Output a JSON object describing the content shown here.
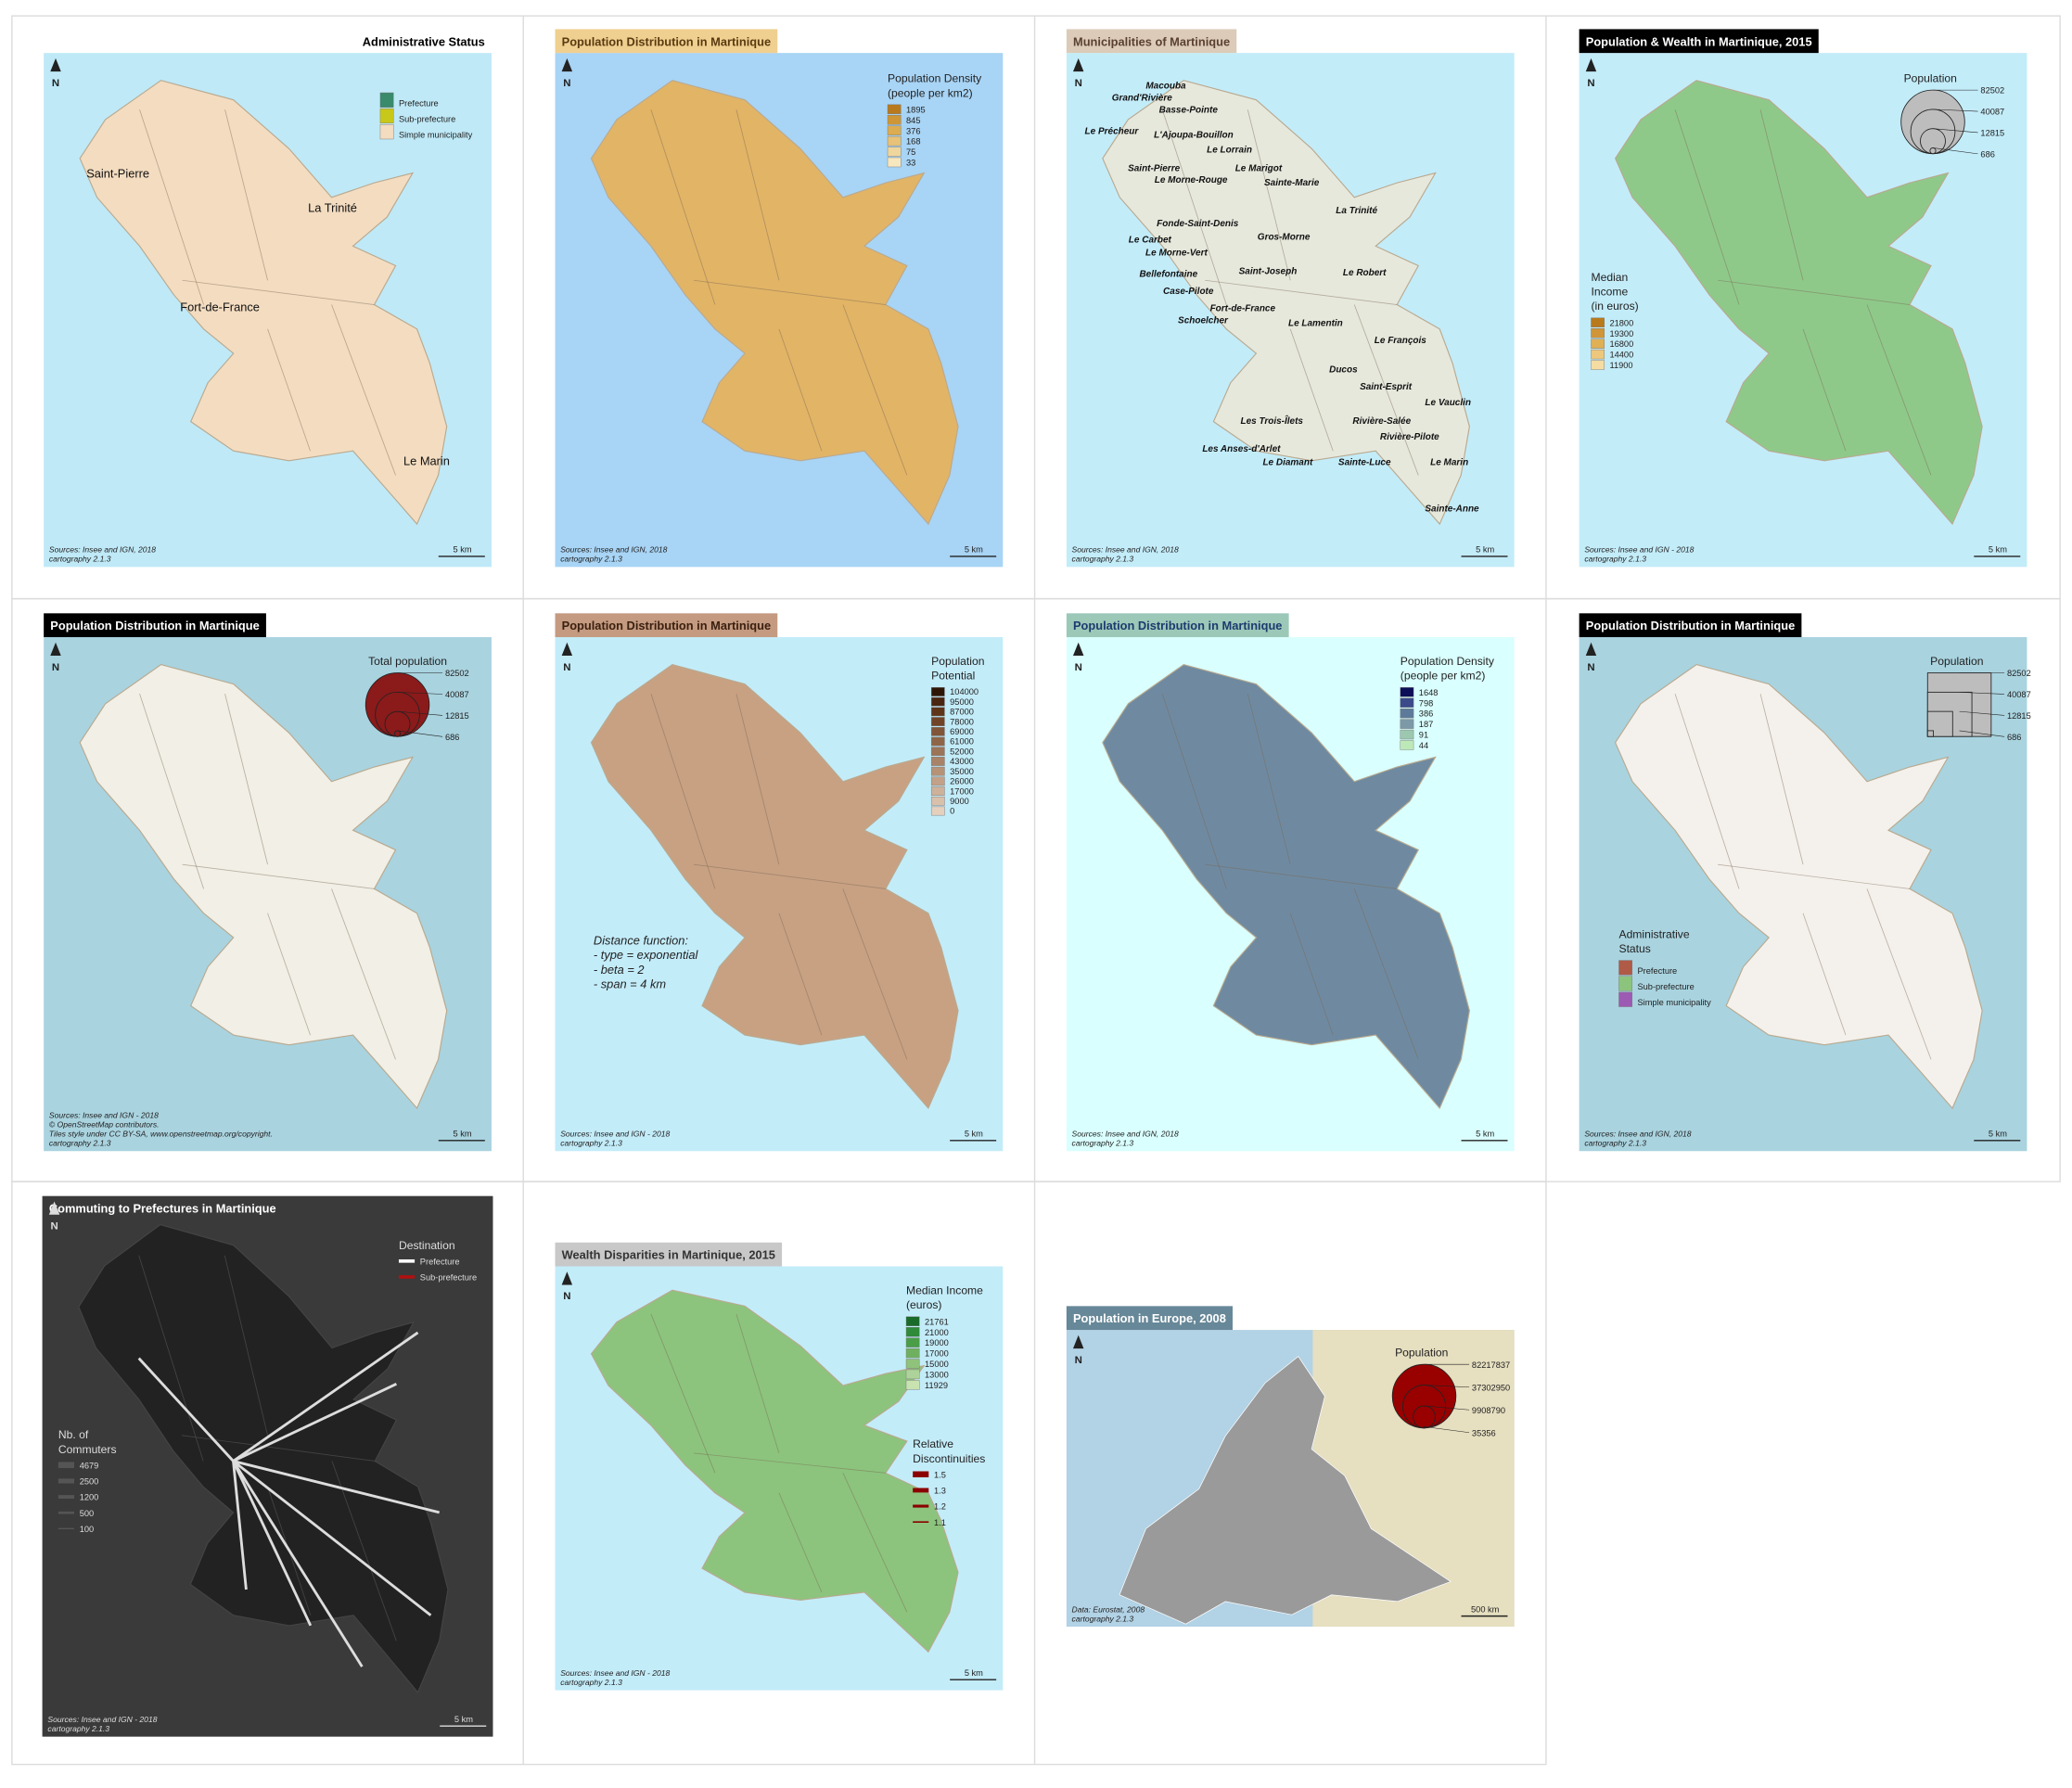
{
  "panels": [
    {
      "title": "Administrative Status",
      "north": "N",
      "scale": "5 km",
      "sources": [
        "Sources: Insee and IGN, 2018",
        "cartography 2.1.3"
      ],
      "labels": [
        "Saint-Pierre",
        "La Trinité",
        "Fort-de-France",
        "Le Marin"
      ],
      "legends": [
        {
          "kind": "swatch",
          "items": [
            "Prefecture",
            "Sub-prefecture",
            "Simple municipality"
          ],
          "colors": [
            "#3a8a6c",
            "#c8c81a",
            "#f3dcc0"
          ]
        }
      ]
    },
    {
      "title": "Population Distribution in Martinique",
      "north": "N",
      "scale": "5 km",
      "sources": [
        "Sources: Insee and IGN, 2018",
        "cartography 2.1.3"
      ],
      "legends": [
        {
          "kind": "swatch",
          "title": [
            "Population Density",
            "(people per km2)"
          ],
          "items": [
            1895,
            845,
            376,
            168,
            75,
            33
          ],
          "colors": [
            "#b87a1c",
            "#cf9635",
            "#dcac50",
            "#e7c278",
            "#efd69c",
            "#f7e7be"
          ]
        }
      ]
    },
    {
      "title": "Municipalities of Martinique",
      "north": "N",
      "scale": "5 km",
      "sources": [
        "Sources: Insee and IGN, 2018",
        "cartography 2.1.3"
      ],
      "labels": [
        "Macouba",
        "Grand'Rivière",
        "Basse-Pointe",
        "Le Précheur",
        "L'Ajoupa-Bouillon",
        "Le Lorrain",
        "Saint-Pierre",
        "Le Marigot",
        "Le Morne-Rouge",
        "Sainte-Marie",
        "La Trinité",
        "Fonde-Saint-Denis",
        "Le Carbet",
        "Gros-Morne",
        "Le Morne-Vert",
        "Bellefontaine",
        "Saint-Joseph",
        "Le Robert",
        "Case-Pilote",
        "Fort-de-France",
        "Schoelcher",
        "Le Lamentin",
        "Le François",
        "Ducos",
        "Saint-Esprit",
        "Le Vauclin",
        "Les Trois-Îlets",
        "Rivière-Salée",
        "Rivière-Pilote",
        "Les Anses-d'Arlet",
        "Le Diamant",
        "Sainte-Luce",
        "Le Marin",
        "Sainte-Anne"
      ],
      "legends": []
    },
    {
      "title": "Population & Wealth in Martinique, 2015",
      "north": "N",
      "scale": "5 km",
      "sources": [
        "Sources: Insee and IGN - 2018",
        "cartography 2.1.3"
      ],
      "legends": [
        {
          "kind": "circles",
          "title": [
            "Population"
          ],
          "items": [
            82502,
            40087,
            12815,
            686
          ],
          "colors": [
            "#bdbdbd"
          ]
        },
        {
          "kind": "swatch",
          "title": [
            "Median",
            "Income",
            "(in euros)"
          ],
          "items": [
            21800,
            19300,
            16800,
            14400,
            11900
          ],
          "colors": [
            "#b87a1c",
            "#d09538",
            "#e0b055",
            "#edc77c",
            "#f5dca2"
          ]
        }
      ]
    },
    {
      "title": "Population Distribution in Martinique",
      "north": "N",
      "scale": "5 km",
      "sources": [
        "Sources: Insee and IGN - 2018",
        "© OpenStreetMap contributors.",
        "Tiles style under CC BY-SA, www.openstreetmap.org/copyright.",
        "cartography 2.1.3"
      ],
      "legends": [
        {
          "kind": "circles",
          "title": [
            "Total population"
          ],
          "items": [
            82502,
            40087,
            12815,
            686
          ],
          "colors": [
            "#8b1a1a"
          ]
        }
      ]
    },
    {
      "title": "Population Distribution in Martinique",
      "north": "N",
      "scale": "5 km",
      "sources": [
        "Sources: Insee and IGN - 2018",
        "cartography 2.1.3"
      ],
      "annotation": [
        "Distance function:",
        "- type = exponential",
        "- beta = 2",
        "- span = 4 km"
      ],
      "legends": [
        {
          "kind": "swatch",
          "title": [
            "Population",
            "Potential"
          ],
          "items": [
            104000,
            95000,
            87000,
            78000,
            69000,
            61000,
            52000,
            43000,
            35000,
            26000,
            17000,
            9000,
            0
          ],
          "colors": [
            "#2e1606",
            "#4a2610",
            "#5e3519",
            "#714428",
            "#815538",
            "#8f6548",
            "#9c7458",
            "#a98367",
            "#b69277",
            "#c2a188",
            "#ceb19a",
            "#d9c0ab",
            "#e5d0be"
          ]
        }
      ]
    },
    {
      "title": "Population Distribution in Martinique",
      "north": "N",
      "scale": "5 km",
      "sources": [
        "Sources: Insee and IGN, 2018",
        "cartography 2.1.3"
      ],
      "legends": [
        {
          "kind": "swatch",
          "title": [
            "Population Density",
            "(people per km2)"
          ],
          "items": [
            1648,
            798,
            386,
            187,
            91,
            44
          ],
          "colors": [
            "#0c0f58",
            "#3a4a8a",
            "#5e7a9a",
            "#7c99a8",
            "#9cc8b0",
            "#bde9b8"
          ]
        }
      ]
    },
    {
      "title": "Population Distribution in Martinique",
      "north": "N",
      "scale": "5 km",
      "sources": [
        "Sources: Insee and IGN, 2018",
        "cartography 2.1.3"
      ],
      "legends": [
        {
          "kind": "squares",
          "title": [
            "Population"
          ],
          "items": [
            82502,
            40087,
            12815,
            686
          ],
          "colors": [
            "#bdbdbd"
          ]
        },
        {
          "kind": "swatch",
          "title": [
            "Administrative",
            "Status"
          ],
          "items": [
            "Prefecture",
            "Sub-prefecture",
            "Simple municipality"
          ],
          "colors": [
            "#b05a48",
            "#8cc47d",
            "#9c5ab2"
          ]
        }
      ]
    },
    {
      "title": "Commuting to Prefectures in Martinique",
      "north": "N",
      "scale": "5 km",
      "sources": [
        "Sources: Insee and IGN - 2018",
        "cartography 2.1.3"
      ],
      "legends": [
        {
          "kind": "lines",
          "title": [
            "Destination"
          ],
          "items": [
            "Prefecture",
            "Sub-prefecture"
          ],
          "colors": [
            "#ffffff",
            "#b01010"
          ]
        },
        {
          "kind": "lines",
          "title": [
            "Nb. of",
            "Commuters"
          ],
          "items": [
            4679,
            2500,
            1200,
            500,
            100
          ],
          "colors": [
            "#555555"
          ]
        }
      ]
    },
    {
      "title": "Wealth Disparities in Martinique, 2015",
      "north": "N",
      "scale": "5 km",
      "sources": [
        "Sources: Insee and IGN - 2018",
        "cartography 2.1.3"
      ],
      "legends": [
        {
          "kind": "swatch",
          "title": [
            "Median Income",
            "(euros)"
          ],
          "items": [
            21761,
            21000,
            19000,
            17000,
            15000,
            13000,
            11929
          ],
          "colors": [
            "#1a6b2a",
            "#2f8a3a",
            "#4a9e48",
            "#6fb060",
            "#8fc27a",
            "#aed39a",
            "#c8e2b0"
          ]
        },
        {
          "kind": "lines",
          "title": [
            "Relative",
            "Discontinuities"
          ],
          "items": [
            1.5,
            1.3,
            1.2,
            1.1
          ],
          "colors": [
            "#8b0000"
          ]
        }
      ]
    },
    {
      "title": "Population in Europe, 2008",
      "north": "N",
      "scale": "500 km",
      "sources": [
        "Data: Eurostat, 2008",
        "cartography 2.1.3"
      ],
      "legends": [
        {
          "kind": "circles",
          "title": [
            "Population"
          ],
          "items": [
            82217837,
            37302950,
            9908790,
            35356
          ],
          "colors": [
            "#990000"
          ]
        }
      ]
    }
  ]
}
